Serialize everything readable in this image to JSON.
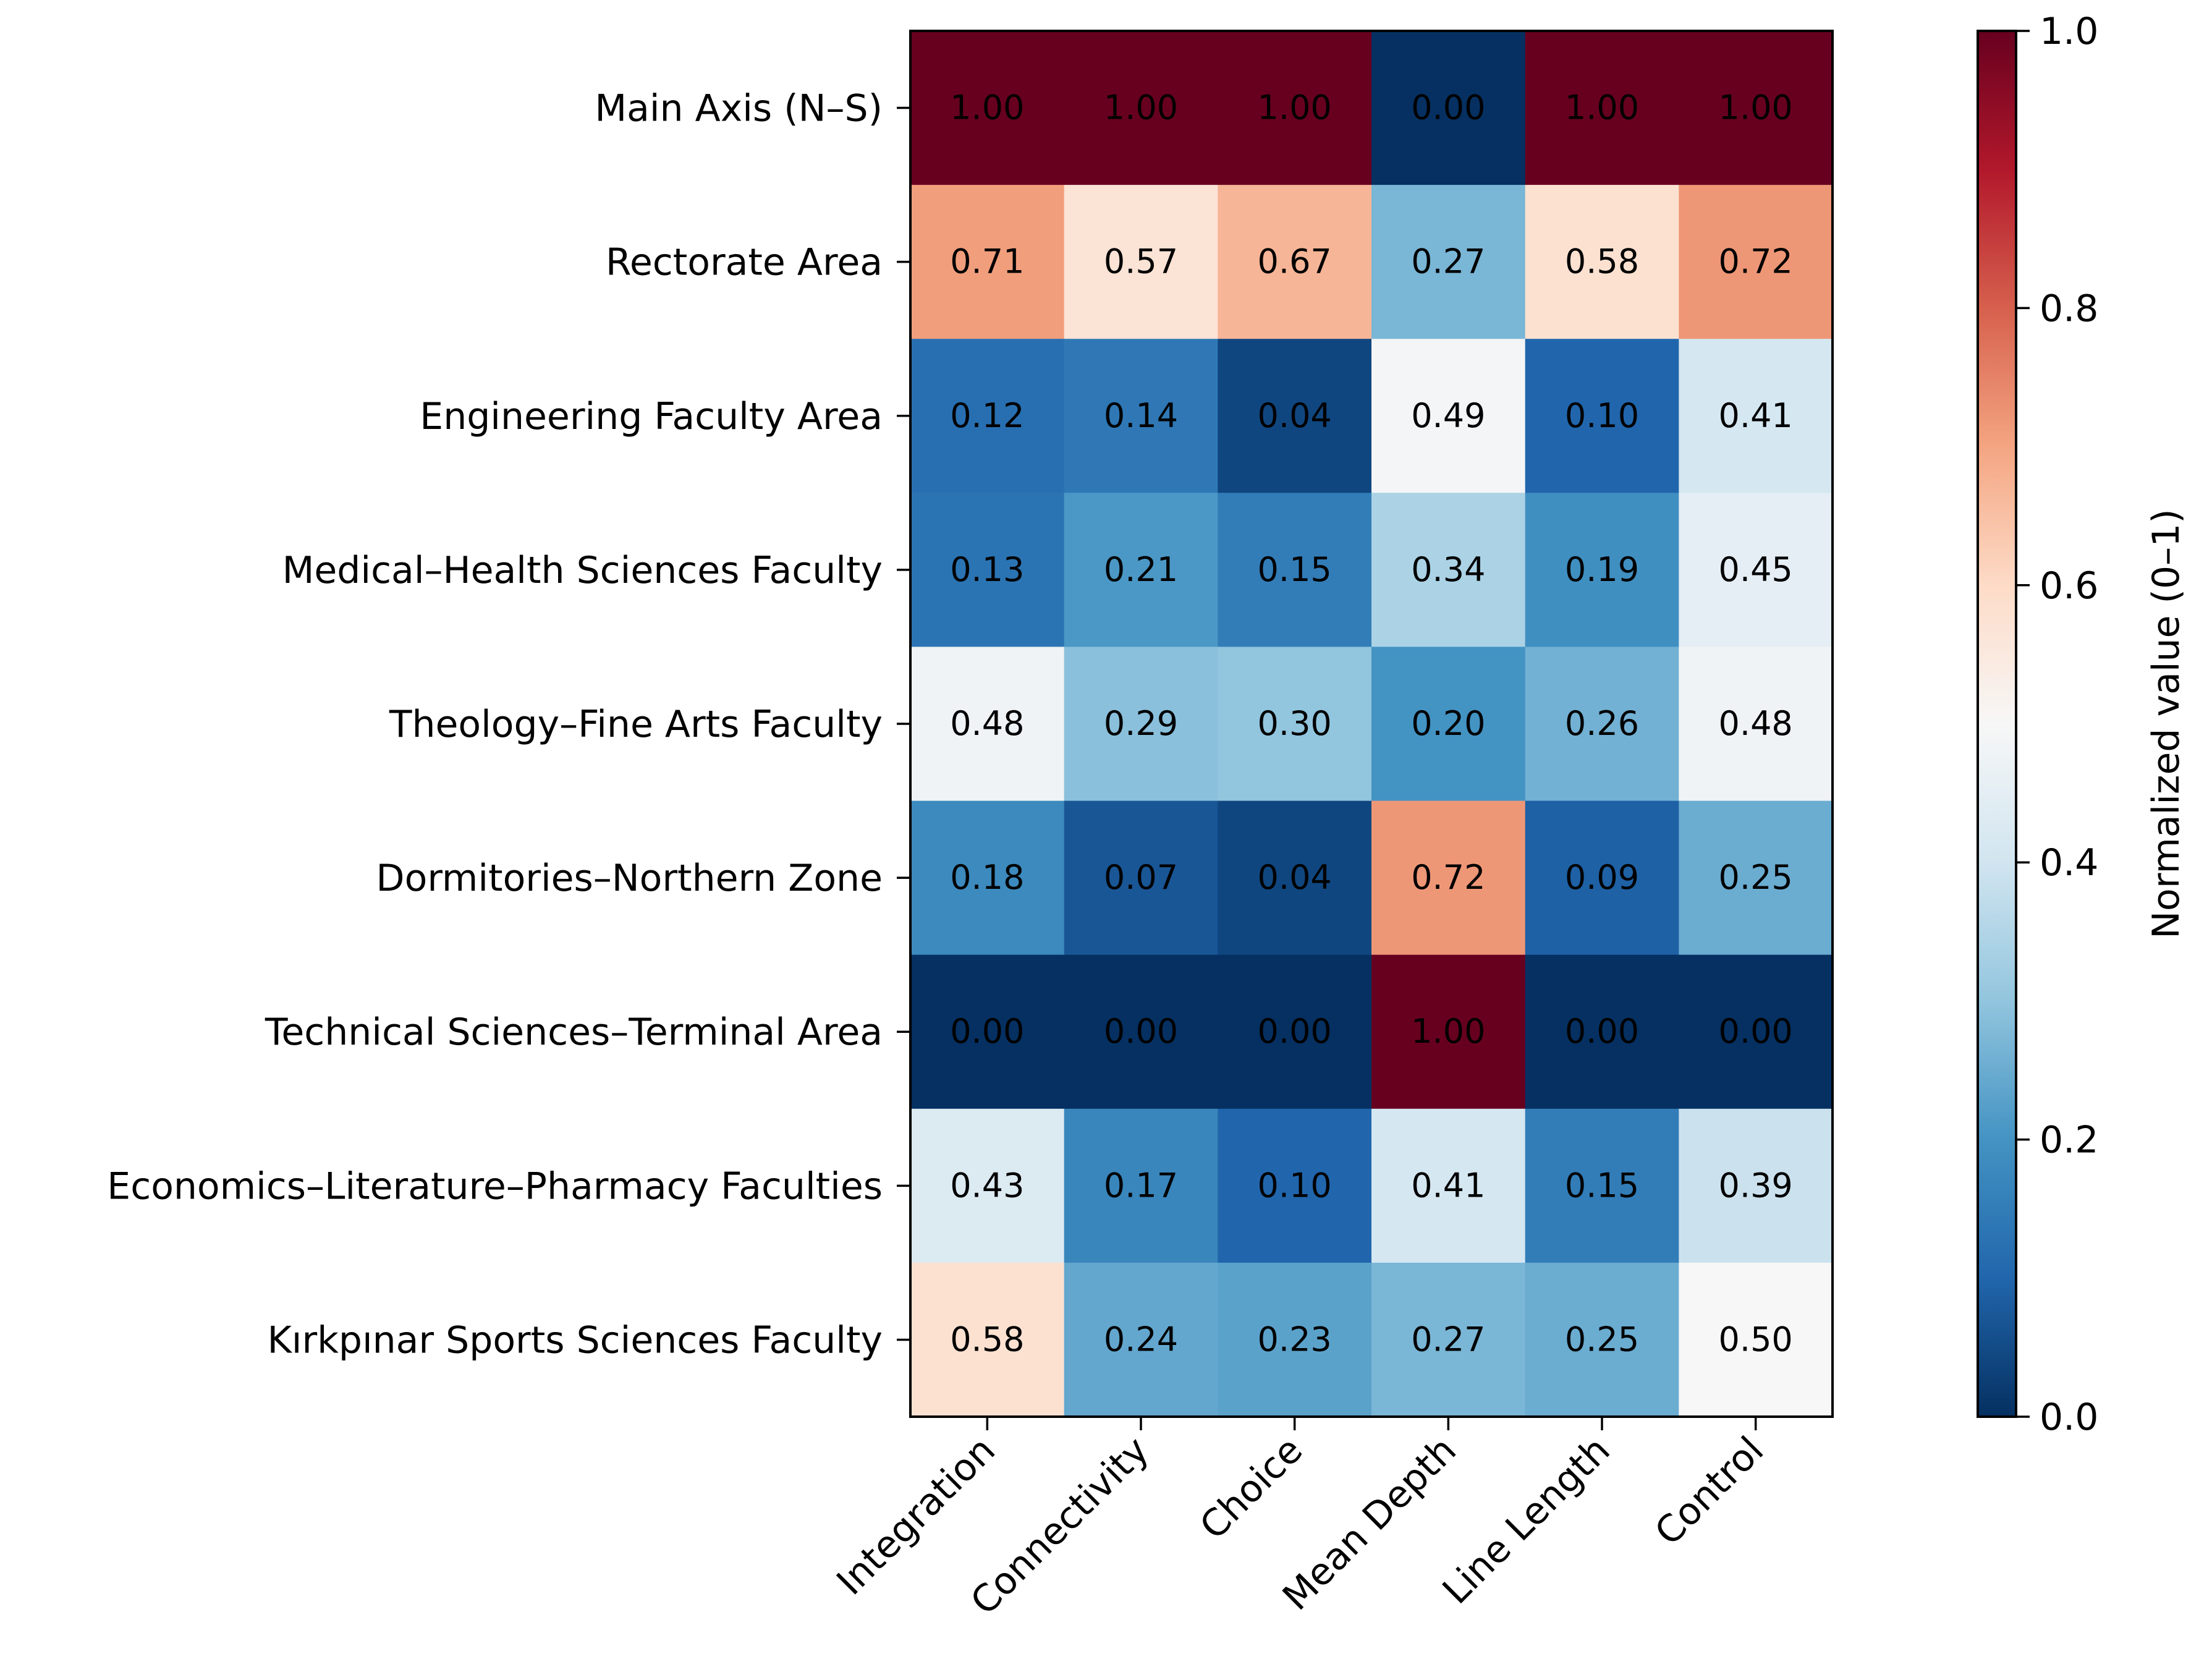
{
  "chart_data": {
    "type": "heatmap",
    "title": "",
    "xlabel": "",
    "ylabel": "",
    "rows": [
      "Main Axis (N–S)",
      "Rectorate Area",
      "Engineering Faculty Area",
      "Medical–Health Sciences Faculty",
      "Theology–Fine Arts Faculty",
      "Dormitories–Northern Zone",
      "Technical Sciences–Terminal Area",
      "Economics–Literature–Pharmacy Faculties",
      "Kırkpınar Sports Sciences Faculty"
    ],
    "columns": [
      "Integration",
      "Connectivity",
      "Choice",
      "Mean Depth",
      "Line Length",
      "Control"
    ],
    "values": [
      [
        1.0,
        1.0,
        1.0,
        0.0,
        1.0,
        1.0
      ],
      [
        0.71,
        0.57,
        0.67,
        0.27,
        0.58,
        0.72
      ],
      [
        0.12,
        0.14,
        0.04,
        0.49,
        0.1,
        0.41
      ],
      [
        0.13,
        0.21,
        0.15,
        0.34,
        0.19,
        0.45
      ],
      [
        0.48,
        0.29,
        0.3,
        0.2,
        0.26,
        0.48
      ],
      [
        0.18,
        0.07,
        0.04,
        0.72,
        0.09,
        0.25
      ],
      [
        0.0,
        0.0,
        0.0,
        1.0,
        0.0,
        0.0
      ],
      [
        0.43,
        0.17,
        0.1,
        0.41,
        0.15,
        0.39
      ],
      [
        0.58,
        0.24,
        0.23,
        0.27,
        0.25,
        0.5
      ]
    ],
    "value_labels": [
      [
        "1.00",
        "1.00",
        "1.00",
        "0.00",
        "1.00",
        "1.00"
      ],
      [
        "0.71",
        "0.57",
        "0.67",
        "0.27",
        "0.58",
        "0.72"
      ],
      [
        "0.12",
        "0.14",
        "0.04",
        "0.49",
        "0.10",
        "0.41"
      ],
      [
        "0.13",
        "0.21",
        "0.15",
        "0.34",
        "0.19",
        "0.45"
      ],
      [
        "0.48",
        "0.29",
        "0.30",
        "0.20",
        "0.26",
        "0.48"
      ],
      [
        "0.18",
        "0.07",
        "0.04",
        "0.72",
        "0.09",
        "0.25"
      ],
      [
        "0.00",
        "0.00",
        "0.00",
        "1.00",
        "0.00",
        "0.00"
      ],
      [
        "0.43",
        "0.17",
        "0.10",
        "0.41",
        "0.15",
        "0.39"
      ],
      [
        "0.58",
        "0.24",
        "0.23",
        "0.27",
        "0.25",
        "0.50"
      ]
    ],
    "colormap": "RdBu_r",
    "colormap_stops": [
      "#053061",
      "#2166ac",
      "#4393c3",
      "#92c5de",
      "#d1e5f0",
      "#f7f7f7",
      "#fddbc7",
      "#f4a582",
      "#d6604d",
      "#b2182b",
      "#67001f"
    ],
    "colorbar": {
      "label": "Normalized value (0–1)",
      "range": [
        0,
        1
      ],
      "ticks": [
        0.0,
        0.2,
        0.4,
        0.6,
        0.8,
        1.0
      ],
      "tick_labels": [
        "0.0",
        "0.2",
        "0.4",
        "0.6",
        "0.8",
        "1.0"
      ]
    }
  }
}
